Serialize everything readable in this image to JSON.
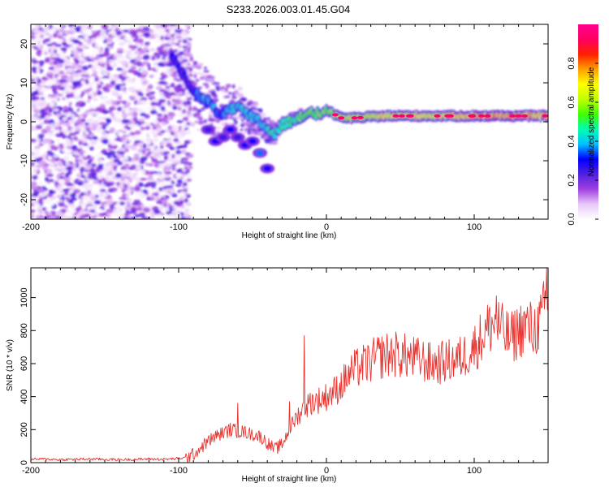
{
  "title": "S233.2026.003.01.45.G04",
  "chart_data": [
    {
      "type": "heatmap",
      "name": "spectrogram",
      "xlabel": "Height of straight line (km)",
      "ylabel": "Frequency (Hz)",
      "xlim": [
        -200,
        150
      ],
      "ylim": [
        -25,
        25
      ],
      "x_ticks": [
        -200,
        -100,
        0,
        100
      ],
      "y_ticks": [
        -20,
        -10,
        0,
        10,
        20
      ],
      "colorbar": {
        "label": "Normalized spectral amplitude",
        "range": [
          0.0,
          1.0
        ],
        "ticks": [
          0.0,
          0.2,
          0.4,
          0.6,
          0.8
        ],
        "tick_labels": [
          "0.0",
          "0.2",
          "0.4",
          "0.6",
          "0.8"
        ],
        "colors": [
          "#ffffff",
          "#e8c8f8",
          "#a040e0",
          "#5020e0",
          "#0000ff",
          "#00c0ff",
          "#00ffb0",
          "#40ff00",
          "#c0ff00",
          "#ffff00",
          "#ffa000",
          "#ff2000",
          "#ff0060",
          "#ff0090"
        ]
      },
      "ridge": {
        "x": [
          -105,
          -100,
          -95,
          -90,
          -85,
          -80,
          -75,
          -70,
          -65,
          -60,
          -55,
          -50,
          -45,
          -40,
          -35,
          -30,
          -25,
          -20,
          -15,
          -10,
          -5,
          0,
          5,
          10,
          20,
          40,
          60,
          80,
          100,
          120,
          150
        ],
        "freq": [
          17,
          14,
          11,
          8,
          6,
          5,
          3,
          2,
          3,
          4,
          2,
          1,
          0,
          -2,
          -3,
          -1,
          0,
          1,
          2,
          2,
          2,
          3,
          2,
          1,
          1,
          1.5,
          1.5,
          1.5,
          1.5,
          1.5,
          1.5
        ],
        "amp": [
          0.35,
          0.3,
          0.3,
          0.35,
          0.4,
          0.45,
          0.4,
          0.4,
          0.45,
          0.5,
          0.45,
          0.45,
          0.45,
          0.5,
          0.55,
          0.55,
          0.6,
          0.6,
          0.65,
          0.65,
          0.65,
          0.65,
          0.7,
          0.75,
          0.75,
          0.8,
          0.8,
          0.8,
          0.85,
          0.9,
          0.85
        ]
      },
      "secondary_blobs": {
        "x": [
          -80,
          -75,
          -70,
          -65,
          -60,
          -55,
          -50,
          -45,
          -40
        ],
        "freq": [
          -2,
          -5,
          -4,
          -2,
          -4,
          -6,
          -5,
          -8,
          -12
        ],
        "amp": [
          0.25,
          0.3,
          0.25,
          0.3,
          0.25,
          0.3,
          0.3,
          0.35,
          0.3
        ]
      },
      "noise_region": {
        "x_range": [
          -200,
          -100
        ],
        "freq_range": [
          -25,
          25
        ],
        "amp_range": [
          0.0,
          0.25
        ]
      }
    },
    {
      "type": "line",
      "name": "snr",
      "xlabel": "Height of straight line (km)",
      "ylabel": "SNR (10 * v/v)",
      "xlim": [
        -200,
        150
      ],
      "ylim": [
        0,
        1180
      ],
      "x_ticks": [
        -200,
        -100,
        0,
        100
      ],
      "y_ticks": [
        0,
        200,
        400,
        600,
        800,
        1000
      ],
      "color": "#e8322e",
      "x": [
        -200,
        -190,
        -180,
        -170,
        -160,
        -150,
        -140,
        -130,
        -120,
        -110,
        -100,
        -95,
        -90,
        -85,
        -80,
        -75,
        -70,
        -65,
        -60,
        -55,
        -50,
        -45,
        -40,
        -35,
        -30,
        -25,
        -20,
        -15,
        -10,
        -5,
        0,
        5,
        10,
        15,
        20,
        25,
        30,
        35,
        40,
        45,
        50,
        55,
        60,
        65,
        70,
        75,
        80,
        85,
        90,
        95,
        100,
        105,
        110,
        115,
        120,
        125,
        130,
        135,
        140,
        145,
        150
      ],
      "y": [
        20,
        22,
        18,
        20,
        22,
        20,
        18,
        20,
        22,
        20,
        25,
        30,
        50,
        90,
        130,
        160,
        180,
        200,
        190,
        185,
        170,
        160,
        120,
        80,
        110,
        200,
        280,
        330,
        370,
        380,
        400,
        430,
        470,
        530,
        570,
        590,
        610,
        640,
        650,
        660,
        650,
        640,
        630,
        620,
        600,
        600,
        610,
        620,
        630,
        660,
        700,
        760,
        820,
        850,
        780,
        750,
        800,
        830,
        800,
        850,
        1000
      ],
      "spikes": [
        {
          "x": -60,
          "y": 360
        },
        {
          "x": -25,
          "y": 370
        },
        {
          "x": -15,
          "y": 770
        },
        {
          "x": 115,
          "y": 1010
        },
        {
          "x": 149,
          "y": 1180
        }
      ]
    }
  ]
}
